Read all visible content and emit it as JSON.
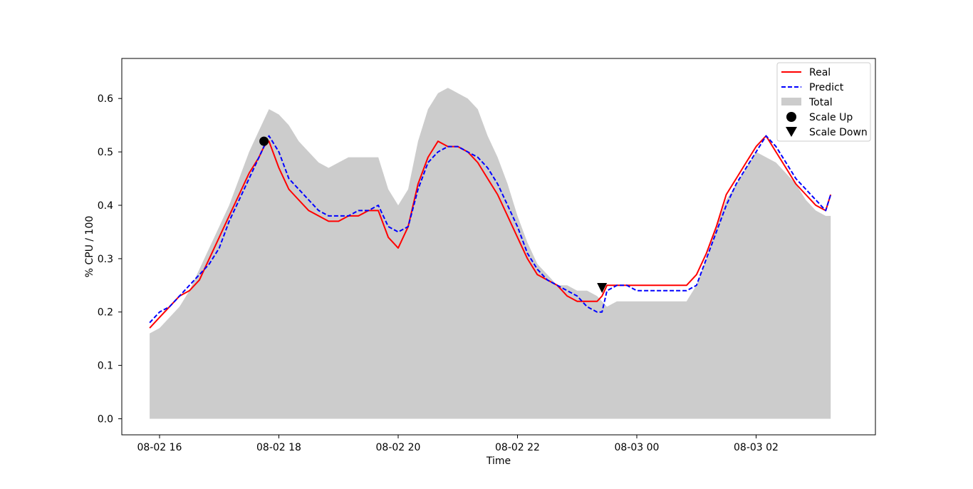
{
  "chart_data": {
    "type": "line",
    "title": "",
    "xlabel": "Time",
    "ylabel": "% CPU / 100",
    "xlim": [
      "2019-08-02 15:22",
      "2019-08-03 04:00"
    ],
    "ylim": [
      -0.03,
      0.675
    ],
    "x_tick_labels": [
      "08-02 16",
      "08-02 18",
      "08-02 20",
      "08-02 22",
      "08-03 00",
      "08-03 02"
    ],
    "x_tick_times": [
      "2019-08-02 16:00",
      "2019-08-02 18:00",
      "2019-08-02 20:00",
      "2019-08-02 22:00",
      "2019-08-03 00:00",
      "2019-08-03 02:00"
    ],
    "y_ticks": [
      0.0,
      0.1,
      0.2,
      0.3,
      0.4,
      0.5,
      0.6
    ],
    "y_tick_labels": [
      "0.0",
      "0.1",
      "0.2",
      "0.3",
      "0.4",
      "0.5",
      "0.6"
    ],
    "grid": false,
    "legend_position": "top-right",
    "x": [
      "2019-08-02 15:50",
      "2019-08-02 16:00",
      "2019-08-02 16:10",
      "2019-08-02 16:20",
      "2019-08-02 16:30",
      "2019-08-02 16:40",
      "2019-08-02 16:50",
      "2019-08-02 17:00",
      "2019-08-02 17:10",
      "2019-08-02 17:20",
      "2019-08-02 17:30",
      "2019-08-02 17:40",
      "2019-08-02 17:45",
      "2019-08-02 17:50",
      "2019-08-02 18:00",
      "2019-08-02 18:10",
      "2019-08-02 18:20",
      "2019-08-02 18:30",
      "2019-08-02 18:40",
      "2019-08-02 18:50",
      "2019-08-02 19:00",
      "2019-08-02 19:10",
      "2019-08-02 19:20",
      "2019-08-02 19:30",
      "2019-08-02 19:40",
      "2019-08-02 19:50",
      "2019-08-02 20:00",
      "2019-08-02 20:10",
      "2019-08-02 20:20",
      "2019-08-02 20:30",
      "2019-08-02 20:40",
      "2019-08-02 20:50",
      "2019-08-02 21:00",
      "2019-08-02 21:10",
      "2019-08-02 21:20",
      "2019-08-02 21:30",
      "2019-08-02 21:40",
      "2019-08-02 21:50",
      "2019-08-02 22:00",
      "2019-08-02 22:10",
      "2019-08-02 22:20",
      "2019-08-02 22:30",
      "2019-08-02 22:40",
      "2019-08-02 22:50",
      "2019-08-02 23:00",
      "2019-08-02 23:10",
      "2019-08-02 23:20",
      "2019-08-02 23:25",
      "2019-08-02 23:30",
      "2019-08-02 23:40",
      "2019-08-02 23:50",
      "2019-08-03 00:00",
      "2019-08-03 00:10",
      "2019-08-03 00:20",
      "2019-08-03 00:30",
      "2019-08-03 00:40",
      "2019-08-03 00:50",
      "2019-08-03 01:00",
      "2019-08-03 01:10",
      "2019-08-03 01:20",
      "2019-08-03 01:30",
      "2019-08-03 01:40",
      "2019-08-03 01:50",
      "2019-08-03 02:00",
      "2019-08-03 02:10",
      "2019-08-03 02:20",
      "2019-08-03 02:30",
      "2019-08-03 02:40",
      "2019-08-03 02:50",
      "2019-08-03 03:00",
      "2019-08-03 03:10",
      "2019-08-03 03:15"
    ],
    "series": [
      {
        "name": "Real",
        "style": "solid",
        "color": "#ff0000",
        "values": [
          0.17,
          0.19,
          0.21,
          0.23,
          0.24,
          0.26,
          0.3,
          0.34,
          0.38,
          0.42,
          0.46,
          0.49,
          0.51,
          0.52,
          0.47,
          0.43,
          0.41,
          0.39,
          0.38,
          0.37,
          0.37,
          0.38,
          0.38,
          0.39,
          0.39,
          0.34,
          0.32,
          0.36,
          0.44,
          0.49,
          0.52,
          0.51,
          0.51,
          0.5,
          0.48,
          0.45,
          0.42,
          0.38,
          0.34,
          0.3,
          0.27,
          0.26,
          0.25,
          0.23,
          0.22,
          0.22,
          0.22,
          0.23,
          0.25,
          0.25,
          0.25,
          0.25,
          0.25,
          0.25,
          0.25,
          0.25,
          0.25,
          0.27,
          0.31,
          0.36,
          0.42,
          0.45,
          0.48,
          0.51,
          0.53,
          0.5,
          0.47,
          0.44,
          0.42,
          0.4,
          0.39,
          0.42
        ]
      },
      {
        "name": "Predict",
        "style": "dashed",
        "color": "#0000ff",
        "values": [
          0.18,
          0.2,
          0.21,
          0.23,
          0.25,
          0.27,
          0.29,
          0.32,
          0.37,
          0.41,
          0.45,
          0.49,
          0.51,
          0.53,
          0.5,
          0.45,
          0.43,
          0.41,
          0.39,
          0.38,
          0.38,
          0.38,
          0.39,
          0.39,
          0.4,
          0.36,
          0.35,
          0.36,
          0.43,
          0.48,
          0.5,
          0.51,
          0.51,
          0.5,
          0.49,
          0.47,
          0.44,
          0.4,
          0.36,
          0.31,
          0.28,
          0.26,
          0.25,
          0.24,
          0.23,
          0.21,
          0.2,
          0.2,
          0.24,
          0.25,
          0.25,
          0.24,
          0.24,
          0.24,
          0.24,
          0.24,
          0.24,
          0.25,
          0.3,
          0.35,
          0.4,
          0.44,
          0.47,
          0.5,
          0.53,
          0.51,
          0.48,
          0.45,
          0.43,
          0.41,
          0.39,
          0.42
        ]
      },
      {
        "name": "Total",
        "style": "area",
        "color": "#cccccc",
        "values": [
          0.16,
          0.17,
          0.19,
          0.21,
          0.24,
          0.28,
          0.32,
          0.36,
          0.4,
          0.45,
          0.5,
          0.54,
          0.56,
          0.58,
          0.57,
          0.55,
          0.52,
          0.5,
          0.48,
          0.47,
          0.48,
          0.49,
          0.49,
          0.49,
          0.49,
          0.43,
          0.4,
          0.43,
          0.52,
          0.58,
          0.61,
          0.62,
          0.61,
          0.6,
          0.58,
          0.53,
          0.49,
          0.44,
          0.38,
          0.33,
          0.29,
          0.27,
          0.25,
          0.25,
          0.24,
          0.24,
          0.23,
          0.22,
          0.21,
          0.22,
          0.22,
          0.22,
          0.22,
          0.22,
          0.22,
          0.22,
          0.22,
          0.25,
          0.3,
          0.36,
          0.41,
          0.44,
          0.47,
          0.5,
          0.49,
          0.48,
          0.46,
          0.44,
          0.41,
          0.39,
          0.38,
          0.38
        ]
      }
    ],
    "markers": [
      {
        "name": "Scale Up",
        "shape": "circle",
        "x": "2019-08-02 17:45",
        "y": 0.52
      },
      {
        "name": "Scale Down",
        "shape": "triangle-down",
        "x": "2019-08-02 23:25",
        "y": 0.245
      }
    ],
    "legend": [
      "Real",
      "Predict",
      "Total",
      "Scale Up",
      "Scale Down"
    ]
  }
}
